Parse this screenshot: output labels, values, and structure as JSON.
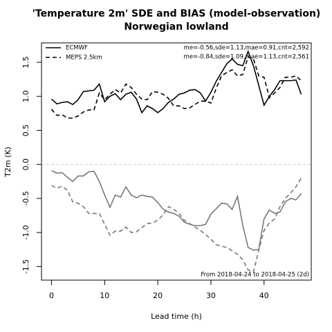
{
  "chart_data": {
    "type": "line",
    "title": "'Temperature 2m' SDE and BIAS (model-observation)",
    "subtitle": "Norwegian lowland",
    "x_label": "Lead time (h)",
    "y_label": "T2m (K)",
    "x": [
      0,
      1,
      2,
      3,
      4,
      5,
      6,
      7,
      8,
      9,
      10,
      11,
      12,
      13,
      14,
      15,
      16,
      17,
      18,
      19,
      20,
      21,
      22,
      23,
      24,
      25,
      26,
      27,
      28,
      29,
      30,
      31,
      32,
      33,
      34,
      35,
      36,
      37,
      38,
      39,
      40,
      41,
      42,
      43,
      44,
      45,
      46,
      47
    ],
    "series": [
      {
        "name": "ECMWF",
        "color": "#000000",
        "dash": false,
        "values": [
          0.96,
          0.89,
          0.91,
          0.92,
          0.88,
          0.95,
          1.07,
          1.08,
          1.09,
          1.18,
          0.92,
          1.0,
          1.04,
          0.95,
          1.03,
          1.06,
          0.96,
          0.76,
          0.86,
          0.82,
          0.76,
          0.82,
          0.91,
          0.96,
          1.03,
          1.05,
          1.09,
          1.1,
          1.05,
          0.93,
          1.06,
          1.22,
          1.35,
          1.48,
          1.55,
          1.47,
          1.45,
          1.66,
          1.45,
          1.16,
          0.87,
          1.0,
          1.1,
          1.23,
          1.23,
          1.23,
          1.24,
          1.03
        ]
      },
      {
        "name": "MEPS 2.5km",
        "color": "#000000",
        "dash": true,
        "values": [
          0.81,
          0.72,
          0.73,
          0.68,
          0.68,
          0.71,
          0.77,
          0.8,
          0.8,
          1.05,
          0.95,
          1.03,
          1.1,
          1.05,
          1.18,
          1.13,
          1.03,
          0.96,
          0.95,
          1.07,
          1.06,
          1.03,
          0.97,
          0.86,
          0.86,
          0.82,
          0.83,
          0.88,
          0.93,
          0.93,
          0.9,
          1.12,
          1.3,
          1.35,
          1.39,
          1.3,
          1.32,
          1.58,
          1.55,
          1.3,
          1.28,
          0.98,
          1.05,
          1.13,
          1.28,
          1.28,
          1.3,
          1.23
        ]
      },
      {
        "color": "#777777",
        "dash": false,
        "values": [
          -0.09,
          -0.13,
          -0.12,
          -0.19,
          -0.25,
          -0.17,
          -0.17,
          -0.11,
          -0.1,
          -0.25,
          -0.45,
          -0.63,
          -0.45,
          -0.48,
          -0.33,
          -0.45,
          -0.49,
          -0.45,
          -0.47,
          -0.48,
          -0.56,
          -0.66,
          -0.7,
          -0.72,
          -0.76,
          -0.85,
          -0.88,
          -0.9,
          -0.9,
          -0.88,
          -0.73,
          -0.65,
          -0.57,
          -0.58,
          -0.66,
          -0.47,
          -0.9,
          -1.22,
          -1.26,
          -1.25,
          -0.8,
          -0.67,
          -0.72,
          -0.7,
          -0.55,
          -0.5,
          -0.52,
          -0.43
        ]
      },
      {
        "color": "#777777",
        "dash": true,
        "values": [
          -0.31,
          -0.35,
          -0.32,
          -0.38,
          -0.55,
          -0.57,
          -0.62,
          -0.72,
          -0.72,
          -0.72,
          -0.88,
          -1.04,
          -0.98,
          -0.98,
          -0.92,
          -1.0,
          -0.99,
          -0.93,
          -0.87,
          -0.86,
          -0.82,
          -0.74,
          -0.62,
          -0.66,
          -0.72,
          -0.82,
          -0.87,
          -0.92,
          -0.97,
          -1.03,
          -1.1,
          -1.18,
          -1.2,
          -1.22,
          -1.27,
          -1.32,
          -1.4,
          -1.55,
          -1.58,
          -1.26,
          -0.97,
          -0.86,
          -0.8,
          -0.62,
          -0.5,
          -0.42,
          -0.33,
          -0.2
        ]
      }
    ],
    "annotations": [
      "me=-0.56,sde=1.13,mae=0.91,cnt=2,592",
      "me=-0.84,sde=1.09,mae=1.13,cnt=2,561",
      "From 2018-04-24 to 2018-04-25 (2d)"
    ],
    "zero_line": 0,
    "xlim": [
      -1.88,
      48.88
    ],
    "xticks": [
      0,
      10,
      20,
      30,
      40
    ],
    "ylim": [
      -1.7,
      1.785
    ],
    "yticks": [
      -1.5,
      {
        "value": -1.0,
        "label": "-1.0"
      },
      -0.5,
      {
        "value": 0.0,
        "label": "0.0"
      },
      0.5,
      {
        "value": 1.0,
        "label": "1.0"
      },
      1.5
    ],
    "legend": "top-left"
  }
}
